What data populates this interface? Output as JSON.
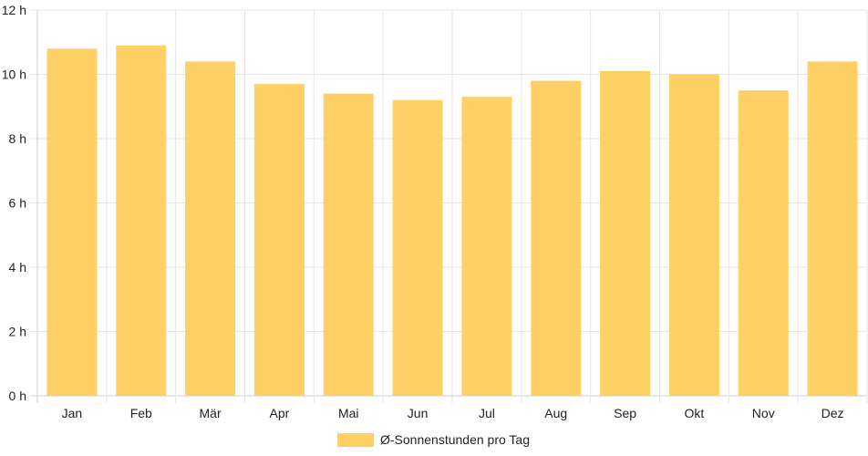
{
  "chart_data": {
    "type": "bar",
    "categories": [
      "Jan",
      "Feb",
      "Mär",
      "Apr",
      "Mai",
      "Jun",
      "Jul",
      "Aug",
      "Sep",
      "Okt",
      "Nov",
      "Dez"
    ],
    "series": [
      {
        "name": "Ø-Sonnenstunden pro Tag",
        "values": [
          10.8,
          10.9,
          10.4,
          9.7,
          9.4,
          9.2,
          9.3,
          9.8,
          10.1,
          10.0,
          9.5,
          10.4
        ]
      }
    ],
    "ylim": [
      0,
      12
    ],
    "yticks": [
      "0 h",
      "2 h",
      "4 h",
      "6 h",
      "8 h",
      "10 h",
      "12 h"
    ],
    "grid": true,
    "legend_position": "bottom",
    "colors": {
      "bar": "#fdd166",
      "grid": "#e6e6e6",
      "axis": "#cccccc"
    }
  }
}
